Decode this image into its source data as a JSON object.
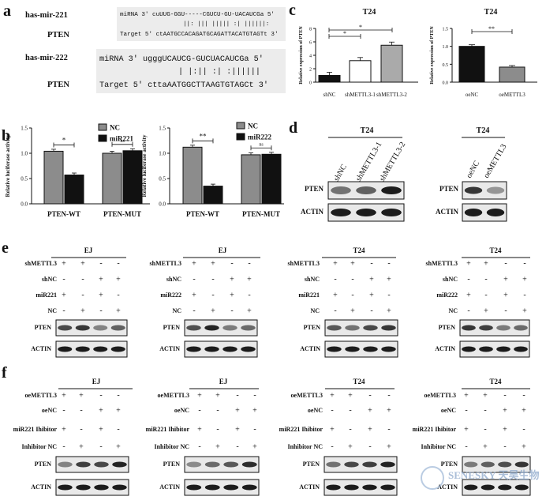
{
  "panel_labels": {
    "a": "a",
    "b": "b",
    "c": "c",
    "d": "d",
    "e": "e",
    "f": "f"
  },
  "panel_a": {
    "mir221": {
      "name": "has-mir-221",
      "target": "PTEN",
      "mirna_line": "miRNA   3' cuUUG-GGU-----CGUCU-GU-UACAUCGa 5'",
      "pair_line": "||: |||       ||||| :| ||||||:",
      "target_line": "Target 5' ctAATGCCACAGATGCAGATTACATGTAGTt 3'"
    },
    "mir222": {
      "name": "has-mir-222",
      "target": "PTEN",
      "mirna_line": "miRNA  3' ugggUCAUCG-GUCUACAUCGa 5'",
      "pair_line": "| |:|| :| :||||||",
      "target_line": "Target 5' cttaAATGGCTTAAGTGTAGCt 3'"
    }
  },
  "panel_b": {
    "charts": [
      {
        "ylabel": "Relative luciferase activity",
        "ylim": [
          0,
          1.5
        ],
        "yticks": [
          "0.0",
          "0.5",
          "1.0",
          "1.5"
        ],
        "categories": [
          "PTEN-WT",
          "PTEN-MUT"
        ],
        "legend": [
          "NC",
          "miR221"
        ],
        "values": [
          [
            1.04,
            0.57
          ],
          [
            1.0,
            1.05
          ]
        ],
        "sig": [
          "*",
          "ns"
        ]
      },
      {
        "ylabel": "Relative luciferase activity",
        "ylim": [
          0,
          1.5
        ],
        "yticks": [
          "0.0",
          "0.5",
          "1.0",
          "1.5"
        ],
        "categories": [
          "PTEN-WT",
          "PTEN-MUT"
        ],
        "legend": [
          "NC",
          "miR222"
        ],
        "values": [
          [
            1.12,
            0.35
          ],
          [
            0.97,
            0.98
          ]
        ],
        "sig": [
          "**",
          "ns"
        ]
      }
    ]
  },
  "chart_data": [
    {
      "type": "bar",
      "title": "T24",
      "ylabel": "Relative expression of PTEN",
      "categories": [
        "shNC",
        "shMETTL3-1",
        "shMETTL3-2"
      ],
      "values": [
        1.0,
        3.2,
        5.5
      ],
      "ylim": [
        0,
        8
      ],
      "yticks": [
        "0",
        "2",
        "4",
        "6",
        "8"
      ],
      "sig": [
        "*",
        "*"
      ]
    },
    {
      "type": "bar",
      "title": "T24",
      "ylabel": "Relative expression of PTEN",
      "categories": [
        "oeNC",
        "oeMETTL3"
      ],
      "values": [
        1.0,
        0.42
      ],
      "ylim": [
        0,
        1.5
      ],
      "yticks": [
        "0.0",
        "0.5",
        "1.0",
        "1.5"
      ],
      "sig": [
        "**"
      ]
    }
  ],
  "panel_d": {
    "blot1": {
      "title": "T24",
      "lanes": [
        "shNC",
        "shMETTL3-1",
        "shMETTL3-2"
      ],
      "rows": [
        "PTEN",
        "ACTIN"
      ],
      "pten": [
        0.5,
        0.6,
        1.0
      ],
      "actin": [
        1.0,
        1.0,
        1.0
      ]
    },
    "blot2": {
      "title": "T24",
      "lanes": [
        "oeNC",
        "oeMETTL3"
      ],
      "rows": [
        "PTEN",
        "ACTIN"
      ],
      "pten": [
        0.85,
        0.3
      ],
      "actin": [
        1.0,
        1.0
      ]
    }
  },
  "panel_e": [
    {
      "cell": "EJ",
      "rows": [
        "shMETTL3",
        "shNC",
        "miR221",
        "NC"
      ]
    },
    {
      "cell": "EJ",
      "rows": [
        "shMETTL3",
        "shNC",
        "miR222",
        "NC"
      ]
    },
    {
      "cell": "T24",
      "rows": [
        "shMETTL3",
        "shNC",
        "miR221",
        "NC"
      ]
    },
    {
      "cell": "T24",
      "rows": [
        "shMETTL3",
        "shNC",
        "miR222",
        "NC"
      ]
    }
  ],
  "panel_f": [
    {
      "cell": "EJ",
      "rows": [
        "oeMETTL3",
        "oeNC",
        "miR221 Ihibitor",
        "Inhibitor NC"
      ]
    },
    {
      "cell": "EJ",
      "rows": [
        "oeMETTL3",
        "oeNC",
        "miR221 Ihibitor",
        "Inhibitor NC"
      ]
    },
    {
      "cell": "T24",
      "rows": [
        "oeMETTL3",
        "oeNC",
        "miR221 Ihibitor",
        "Inhibitor NC"
      ]
    },
    {
      "cell": "T24",
      "rows": [
        "oeMETTL3",
        "oeNC",
        "miR221 Ihibitor",
        "Inhibitor NC"
      ]
    }
  ],
  "grid_signs": [
    [
      "+",
      "+",
      "-",
      "-"
    ],
    [
      "-",
      "-",
      "+",
      "+"
    ],
    [
      "+",
      "-",
      "+",
      "-"
    ],
    [
      "-",
      "+",
      "-",
      "+"
    ]
  ],
  "blot_rows": [
    "PTEN",
    "ACTIN"
  ],
  "panel_e_pten": [
    [
      0.75,
      0.85,
      0.4,
      0.6
    ],
    [
      0.7,
      0.95,
      0.45,
      0.55
    ],
    [
      0.65,
      0.5,
      0.75,
      0.85
    ],
    [
      0.85,
      0.8,
      0.45,
      0.55
    ]
  ],
  "panel_f_pten": [
    [
      0.4,
      0.8,
      0.75,
      0.95
    ],
    [
      0.35,
      0.55,
      0.65,
      0.9
    ],
    [
      0.5,
      0.75,
      0.8,
      0.95
    ],
    [
      0.45,
      0.6,
      0.7,
      0.85
    ]
  ],
  "watermark": "SENESKY 天昊生物"
}
